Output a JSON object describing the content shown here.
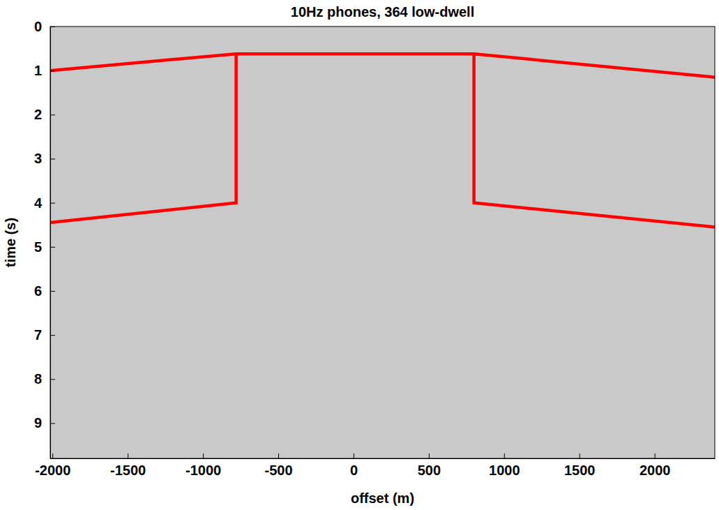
{
  "chart_data": {
    "type": "line",
    "title": "10Hz phones, 364 low-dwell",
    "x_label": "offset (m)",
    "y_label": "time (s)",
    "xlim": [
      -2015,
      2400
    ],
    "ylim": [
      0,
      9.8
    ],
    "xticks": [
      -2000,
      -1500,
      -1000,
      -500,
      0,
      500,
      1000,
      1500,
      2000
    ],
    "yticks": [
      0,
      1,
      2,
      3,
      4,
      5,
      6,
      7,
      8,
      9
    ],
    "grid": false,
    "series": [
      {
        "color": "#ff0000",
        "x": [
          -2015,
          -780,
          800,
          2400
        ],
        "values": [
          1.0,
          0.62,
          0.62,
          1.15
        ]
      },
      {
        "color": "#ff0000",
        "x": [
          -780,
          -780,
          -2015
        ],
        "values": [
          0.62,
          4.0,
          4.45
        ]
      },
      {
        "color": "#ff0000",
        "x": [
          800,
          800,
          2400
        ],
        "values": [
          0.62,
          4.0,
          4.55
        ]
      }
    ]
  }
}
